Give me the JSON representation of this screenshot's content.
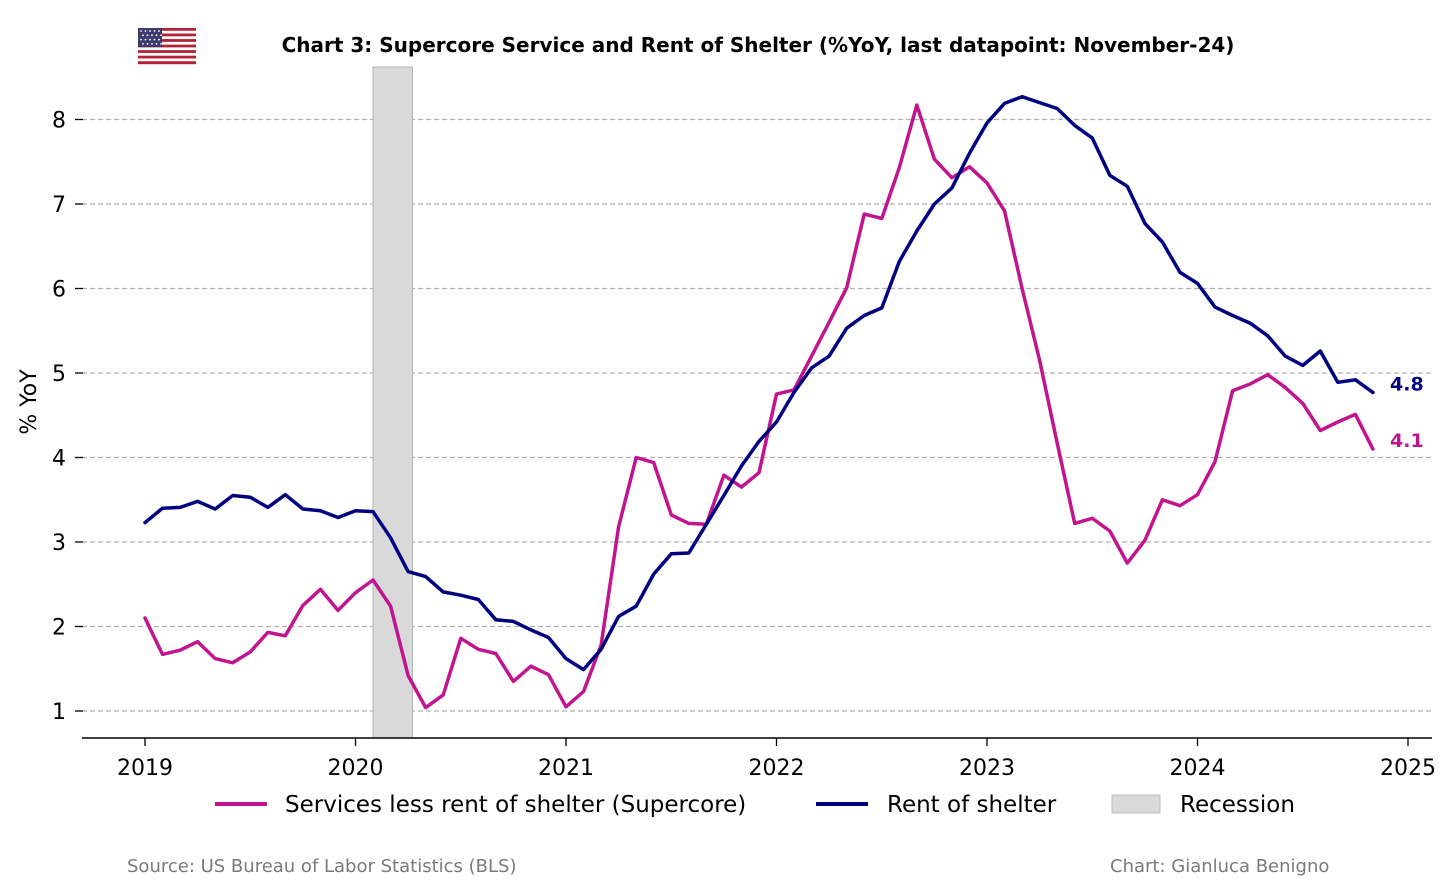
{
  "chart_data": {
    "type": "line",
    "title": "Chart 3: Supercore Service and Rent of Shelter (%YoY, last datapoint: November-24)",
    "xlabel": "",
    "ylabel": "% YoY",
    "x_ticks": [
      "2019",
      "2020",
      "2021",
      "2022",
      "2023",
      "2024",
      "2025"
    ],
    "y_ticks": [
      "1",
      "2",
      "3",
      "4",
      "5",
      "6",
      "7",
      "8"
    ],
    "xlim": [
      "2018-09",
      "2025-02"
    ],
    "ylim": [
      0.7,
      8.6
    ],
    "grid": "horizontal dashed",
    "legend_placement": "bottom",
    "x_start": "2019-01",
    "x_frequency": "monthly",
    "recession": {
      "label": "Recession",
      "start": "2020-02",
      "end": "2020-04",
      "color": "#d9d9d9"
    },
    "series": [
      {
        "name": "Services less rent of shelter (Supercore)",
        "color": "#c0158f",
        "last_label": "4.1",
        "values": [
          2.1,
          1.67,
          1.72,
          1.82,
          1.62,
          1.57,
          1.7,
          1.93,
          1.89,
          2.25,
          2.44,
          2.19,
          2.4,
          2.55,
          2.24,
          1.42,
          1.04,
          1.19,
          1.86,
          1.73,
          1.68,
          1.35,
          1.53,
          1.43,
          1.05,
          1.23,
          1.78,
          3.18,
          4.0,
          3.94,
          3.32,
          3.22,
          3.21,
          3.79,
          3.65,
          3.82,
          4.75,
          4.8,
          5.2,
          5.6,
          6.01,
          6.88,
          6.83,
          7.43,
          8.17,
          7.53,
          7.31,
          7.44,
          7.25,
          6.92,
          6.0,
          5.15,
          4.17,
          3.22,
          3.28,
          3.13,
          2.75,
          3.02,
          3.5,
          3.43,
          3.56,
          3.95,
          4.79,
          4.87,
          4.98,
          4.83,
          4.64,
          4.32,
          4.42,
          4.51,
          4.1
        ]
      },
      {
        "name": "Rent of shelter",
        "color": "#000080",
        "last_label": "4.8",
        "values": [
          3.23,
          3.4,
          3.41,
          3.48,
          3.39,
          3.55,
          3.53,
          3.41,
          3.56,
          3.39,
          3.37,
          3.29,
          3.37,
          3.36,
          3.05,
          2.65,
          2.59,
          2.41,
          2.37,
          2.32,
          2.08,
          2.06,
          1.96,
          1.87,
          1.62,
          1.49,
          1.73,
          2.12,
          2.24,
          2.62,
          2.86,
          2.87,
          3.21,
          3.55,
          3.9,
          4.19,
          4.42,
          4.77,
          5.06,
          5.2,
          5.53,
          5.68,
          5.77,
          6.32,
          6.68,
          7.0,
          7.19,
          7.6,
          7.96,
          8.19,
          8.27,
          8.2,
          8.13,
          7.93,
          7.78,
          7.34,
          7.21,
          6.77,
          6.55,
          6.19,
          6.06,
          5.78,
          5.68,
          5.59,
          5.44,
          5.2,
          5.09,
          5.26,
          4.89,
          4.92,
          4.77
        ]
      }
    ]
  },
  "footer": {
    "source": "Source: US Bureau of Labor Statistics (BLS)",
    "credit": "Chart: Gianluca Benigno"
  },
  "flag_icon": "us-flag-icon"
}
